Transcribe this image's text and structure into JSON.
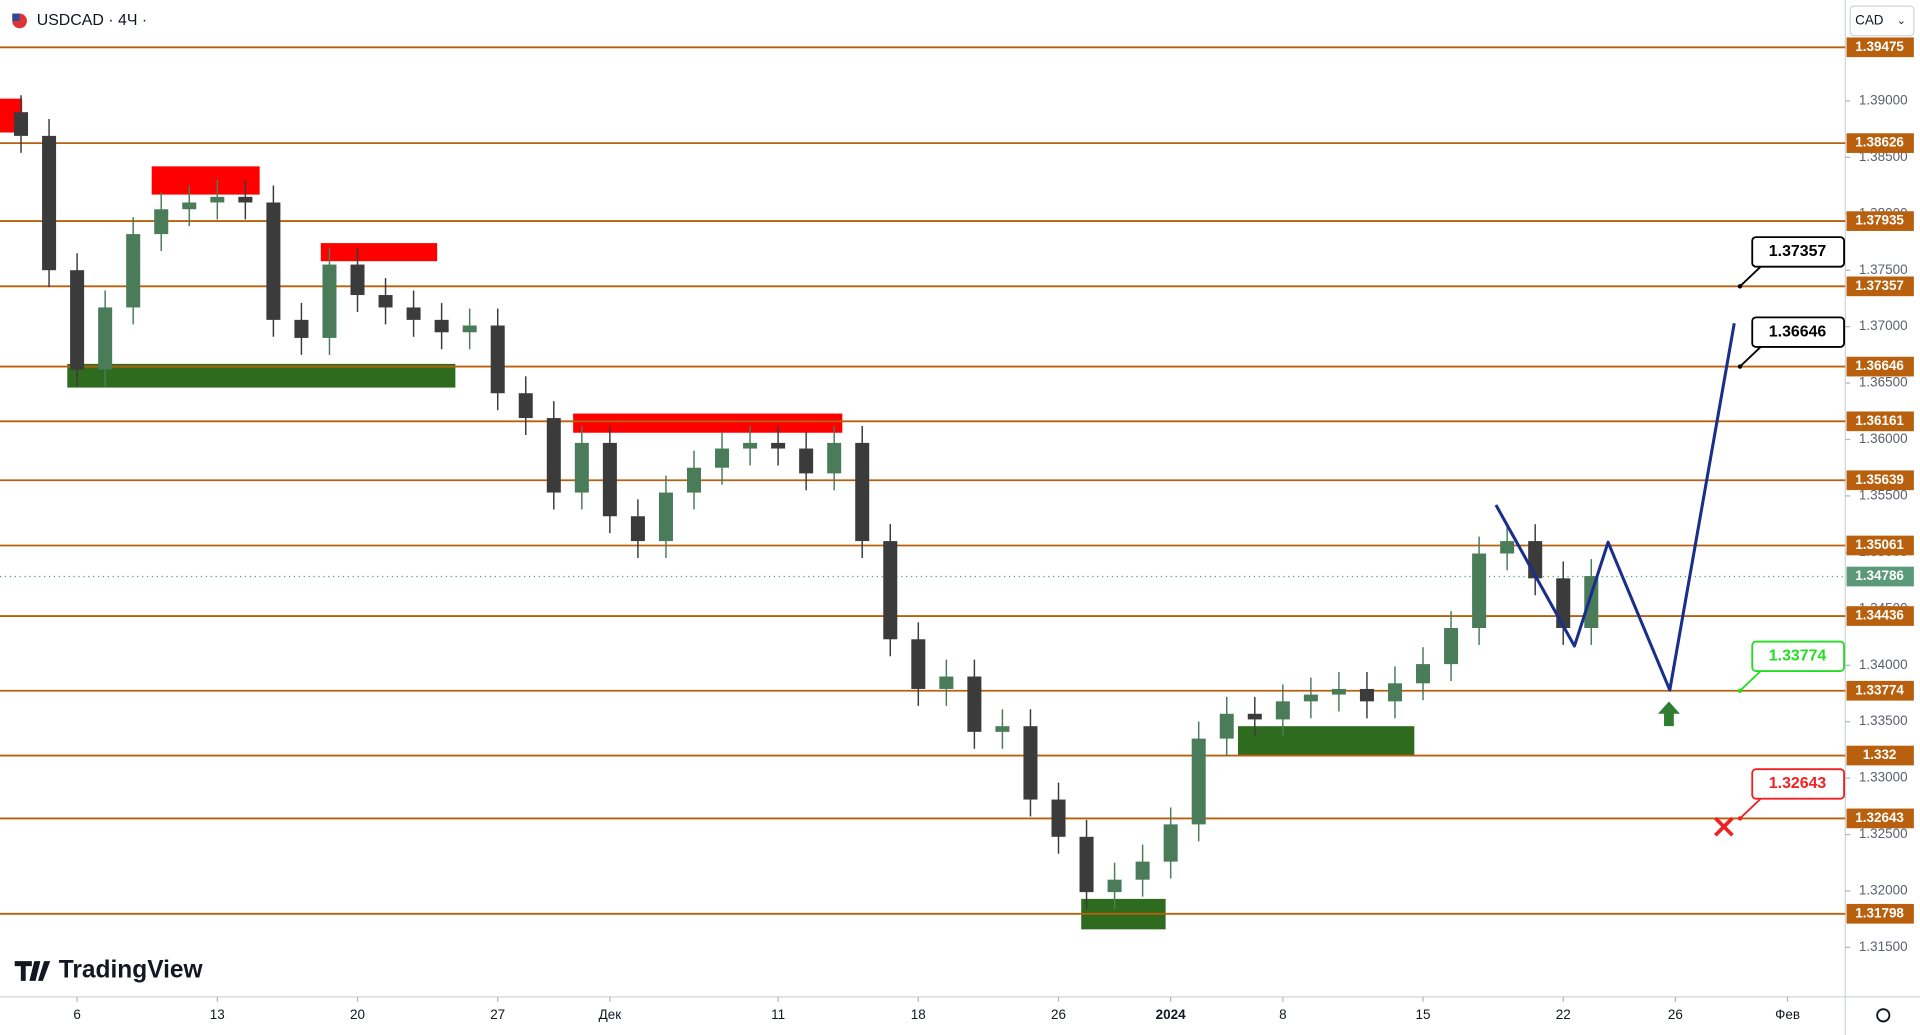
{
  "header": {
    "symbol": "USDCAD · 4Ч ·",
    "currency": "CAD",
    "brand": "TradingView"
  },
  "chart_data": {
    "type": "candlestick",
    "xlim": [
      -2.75,
      63.06
    ],
    "ylim": [
      1.31062,
      1.39894
    ],
    "xticks": [
      {
        "value": 0,
        "label": "6"
      },
      {
        "value": 5,
        "label": "13"
      },
      {
        "value": 10,
        "label": "20"
      },
      {
        "value": 15,
        "label": "27"
      },
      {
        "value": 19,
        "label": "Дек"
      },
      {
        "value": 25,
        "label": "11"
      },
      {
        "value": 30,
        "label": "18"
      },
      {
        "value": 35,
        "label": "26"
      },
      {
        "value": 39,
        "label": "2024"
      },
      {
        "value": 43,
        "label": "8"
      },
      {
        "value": 48,
        "label": "15"
      },
      {
        "value": 53,
        "label": "22"
      },
      {
        "value": 57,
        "label": "26"
      },
      {
        "value": 61,
        "label": "Фев"
      }
    ],
    "yticks": [
      {
        "value": 1.315,
        "label": "1.31500"
      },
      {
        "value": 1.32,
        "label": "1.32000"
      },
      {
        "value": 1.325,
        "label": "1.32500"
      },
      {
        "value": 1.33,
        "label": "1.33000"
      },
      {
        "value": 1.335,
        "label": "1.33500"
      },
      {
        "value": 1.34,
        "label": "1.34000"
      },
      {
        "value": 1.345,
        "label": "1.34500"
      },
      {
        "value": 1.35,
        "label": "1.35000"
      },
      {
        "value": 1.355,
        "label": "1.35500"
      },
      {
        "value": 1.36,
        "label": "1.36000"
      },
      {
        "value": 1.365,
        "label": "1.36500"
      },
      {
        "value": 1.37,
        "label": "1.37000"
      },
      {
        "value": 1.375,
        "label": "1.37500"
      },
      {
        "value": 1.38,
        "label": "1.38000"
      },
      {
        "value": 1.385,
        "label": "1.38500"
      },
      {
        "value": 1.39,
        "label": "1.39000"
      }
    ],
    "up_color": "#4a7c59",
    "down_color": "#3b3b3b",
    "candles": {
      "x": [
        -2,
        -1,
        0,
        1,
        2,
        3,
        4,
        5,
        6,
        7,
        8,
        9,
        10,
        11,
        12,
        13,
        14,
        15,
        16,
        17,
        18,
        19,
        20,
        21,
        22,
        23,
        24,
        25,
        26,
        27,
        28,
        29,
        30,
        31,
        32,
        33,
        34,
        35,
        36,
        37,
        38,
        39,
        40,
        41,
        42,
        43,
        44,
        45,
        46,
        47,
        48,
        49,
        50,
        51,
        52,
        53,
        54
      ],
      "o": [
        1.389,
        1.3869,
        1.375,
        1.3662,
        1.3717,
        1.3782,
        1.3804,
        1.381,
        1.3815,
        1.381,
        1.3706,
        1.369,
        1.3755,
        1.3728,
        1.3717,
        1.3706,
        1.3695,
        1.3701,
        1.3641,
        1.3619,
        1.3553,
        1.3597,
        1.3532,
        1.351,
        1.3553,
        1.3575,
        1.3592,
        1.3597,
        1.3592,
        1.357,
        1.3597,
        1.351,
        1.3423,
        1.3379,
        1.339,
        1.3341,
        1.3346,
        1.3281,
        1.3248,
        1.3199,
        1.321,
        1.3226,
        1.3259,
        1.3335,
        1.3357,
        1.3352,
        1.3368,
        1.3374,
        1.3379,
        1.3368,
        1.3384,
        1.3401,
        1.3433,
        1.3499,
        1.351,
        1.3477,
        1.3433
      ],
      "h": [
        1.3905,
        1.3884,
        1.3765,
        1.3732,
        1.3797,
        1.3819,
        1.3825,
        1.383,
        1.383,
        1.3825,
        1.3721,
        1.377,
        1.377,
        1.3743,
        1.3732,
        1.3721,
        1.3716,
        1.3716,
        1.3656,
        1.3634,
        1.3612,
        1.3612,
        1.3547,
        1.3568,
        1.359,
        1.3607,
        1.3612,
        1.3612,
        1.3607,
        1.3612,
        1.3612,
        1.3525,
        1.3438,
        1.3405,
        1.3405,
        1.3361,
        1.3361,
        1.3296,
        1.3263,
        1.3225,
        1.3241,
        1.3274,
        1.335,
        1.3372,
        1.3372,
        1.3383,
        1.3389,
        1.3394,
        1.3394,
        1.3399,
        1.3416,
        1.3448,
        1.3514,
        1.3525,
        1.3525,
        1.3492,
        1.3494
      ],
      "l": [
        1.3854,
        1.3735,
        1.3647,
        1.3647,
        1.3702,
        1.3767,
        1.3789,
        1.3795,
        1.3795,
        1.3691,
        1.3675,
        1.3675,
        1.3713,
        1.3702,
        1.3691,
        1.368,
        1.368,
        1.3626,
        1.3604,
        1.3538,
        1.3538,
        1.3517,
        1.3495,
        1.3495,
        1.3538,
        1.356,
        1.3577,
        1.3577,
        1.3555,
        1.3555,
        1.3495,
        1.3408,
        1.3364,
        1.3364,
        1.3326,
        1.3326,
        1.3266,
        1.3233,
        1.3184,
        1.3184,
        1.3195,
        1.3211,
        1.3244,
        1.332,
        1.3337,
        1.3337,
        1.3353,
        1.3359,
        1.3353,
        1.3353,
        1.3369,
        1.3386,
        1.3418,
        1.3484,
        1.3462,
        1.3418,
        1.3418
      ],
      "c": [
        1.3869,
        1.375,
        1.3662,
        1.3717,
        1.3782,
        1.3804,
        1.381,
        1.3815,
        1.381,
        1.3706,
        1.369,
        1.3755,
        1.3728,
        1.3717,
        1.3706,
        1.3695,
        1.3701,
        1.3641,
        1.3619,
        1.3553,
        1.3597,
        1.3532,
        1.351,
        1.3553,
        1.3575,
        1.3592,
        1.3597,
        1.3592,
        1.357,
        1.3597,
        1.351,
        1.3423,
        1.3379,
        1.339,
        1.3341,
        1.3346,
        1.3281,
        1.3248,
        1.3199,
        1.321,
        1.3226,
        1.3259,
        1.3335,
        1.3357,
        1.3352,
        1.3368,
        1.3374,
        1.3379,
        1.3368,
        1.3384,
        1.3401,
        1.3433,
        1.3499,
        1.351,
        1.3477,
        1.3433,
        1.3479
      ]
    },
    "zones": [
      {
        "kind": "supply",
        "color": "#ff0000",
        "x0": -2.75,
        "x1": -1.96,
        "y0": 1.3872,
        "y1": 1.3902
      },
      {
        "kind": "supply",
        "color": "#ff0000",
        "x0": 2.66,
        "x1": 6.51,
        "y0": 1.3817,
        "y1": 1.3842
      },
      {
        "kind": "supply",
        "color": "#ff0000",
        "x0": 8.69,
        "x1": 12.84,
        "y0": 1.3758,
        "y1": 1.3774
      },
      {
        "kind": "supply",
        "color": "#ff0000",
        "x0": 17.69,
        "x1": 27.29,
        "y0": 1.3606,
        "y1": 1.3623
      },
      {
        "kind": "demand",
        "color": "#2e6b1f",
        "x0": -0.35,
        "x1": 13.49,
        "y0": 1.3646,
        "y1": 1.3667
      },
      {
        "kind": "demand",
        "color": "#2e6b1f",
        "x0": 35.81,
        "x1": 38.82,
        "y0": 1.3166,
        "y1": 1.3193
      },
      {
        "kind": "demand",
        "color": "#2e6b1f",
        "x0": 41.4,
        "x1": 47.69,
        "y0": 1.332,
        "y1": 1.3346
      }
    ],
    "levels": {
      "color": "#b8600e",
      "values": [
        1.39475,
        1.38626,
        1.37935,
        1.37357,
        1.36646,
        1.36161,
        1.35639,
        1.35061,
        1.34436,
        1.33774,
        1.332,
        1.32643,
        1.31798
      ]
    },
    "last_price": {
      "value": 1.34786,
      "color": "#5b9a78"
    },
    "callouts": [
      {
        "value": 1.37357,
        "color": "#000000"
      },
      {
        "value": 1.36646,
        "color": "#000000"
      },
      {
        "value": 1.33774,
        "color": "#22dd22"
      },
      {
        "value": 1.32643,
        "color": "#ee2222"
      }
    ],
    "projection": {
      "color": "#1a2f8a",
      "x": [
        50.6,
        53.4,
        54.6,
        56.8,
        59.1
      ],
      "y": [
        1.3542,
        1.3417,
        1.3509,
        1.3378,
        1.3703
      ]
    },
    "signals": [
      {
        "kind": "buy",
        "color": "#2e7d32",
        "x": 56.77,
        "y": 1.3357
      },
      {
        "kind": "stop",
        "color": "#ee2222",
        "x": 58.73,
        "y": 1.3257
      }
    ]
  }
}
